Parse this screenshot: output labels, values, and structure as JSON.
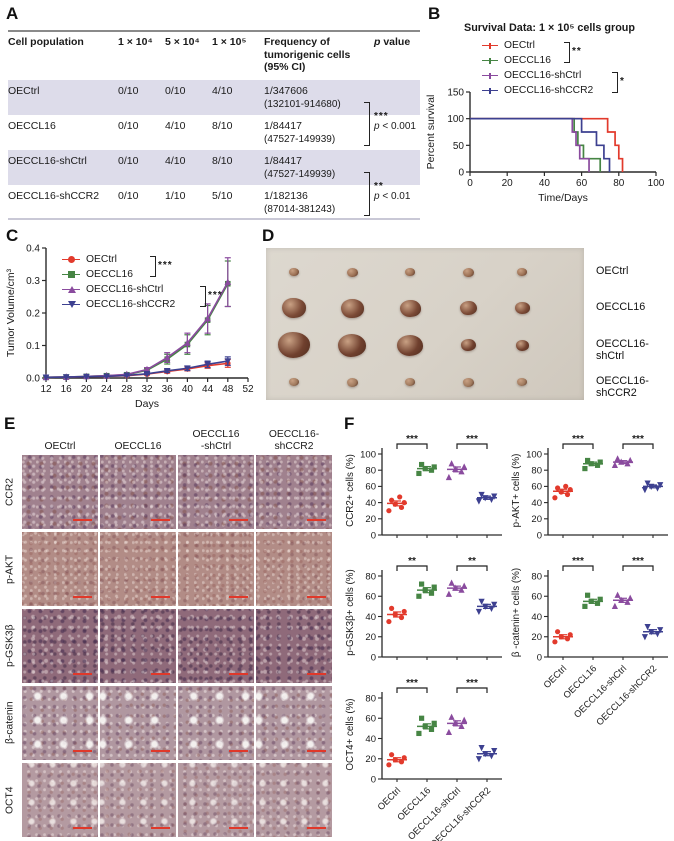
{
  "colors": {
    "red": "#e23a2c",
    "green": "#468544",
    "purple": "#8a4b9e",
    "navy": "#3d4090",
    "axis": "#2a2a2a",
    "stripe": "#dddcea",
    "scalebar": "#e0382a",
    "photo_bg": "#d8d2c8",
    "tumor_rows": [
      "#9b7054",
      "#7c4b37",
      "#70402e",
      "#a07a5e"
    ]
  },
  "panel_labels": {
    "A": "A",
    "B": "B",
    "C": "C",
    "D": "D",
    "E": "E",
    "F": "F"
  },
  "group_names": [
    "OECtrl",
    "OECCL16",
    "OECCL16-shCtrl",
    "OECCL16-shCCR2"
  ],
  "tableA": {
    "header": {
      "pop": "Cell population",
      "d1": "1 × 10⁴",
      "d2": "5 × 10⁴",
      "d3": "1 × 10⁵",
      "freq": "Frequency of tumorigenic cells (95% CI)",
      "p_prefix": "p",
      "p_rest": " value"
    },
    "rows": [
      {
        "name": "OECtrl",
        "d1": "0/10",
        "d2": "0/10",
        "d3": "4/10",
        "freq": "1/347606",
        "ci": "(132101-914680)"
      },
      {
        "name": "OECCL16",
        "d1": "0/10",
        "d2": "4/10",
        "d3": "8/10",
        "freq": "1/84417",
        "ci": "(47527-149939)"
      },
      {
        "name": "OECCL16-shCtrl",
        "d1": "0/10",
        "d2": "4/10",
        "d3": "8/10",
        "freq": "1/84417",
        "ci": "(47527-149939)"
      },
      {
        "name": "OECCL16-shCCR2",
        "d1": "0/10",
        "d2": "1/10",
        "d3": "5/10",
        "freq": "1/182136",
        "ci": "(87014-381243)"
      }
    ],
    "sig": [
      {
        "stars": "***",
        "p_prefix": "p",
        "p_rest": " < 0.001"
      },
      {
        "stars": "**",
        "p_prefix": "p",
        "p_rest": " < 0.01"
      }
    ]
  },
  "panelD": {
    "labels": [
      "OECtrl",
      "OECCL16",
      "OECCL16-shCtrl",
      "OECCL16-shCCR2"
    ],
    "sizes": [
      [
        10,
        11,
        10,
        11,
        10
      ],
      [
        24,
        23,
        21,
        17,
        15
      ],
      [
        32,
        28,
        26,
        15,
        13
      ],
      [
        10,
        11,
        10,
        11,
        10
      ]
    ]
  },
  "panelE": {
    "col_headers": [
      "OECtrl",
      "OECCL16",
      "OECCL16\n-shCtrl",
      "OECCL16-\nshCCR2"
    ],
    "row_labels": [
      "CCR2",
      "p-AKT",
      "p-GSK3β",
      "β-catenin",
      "OCT4"
    ]
  },
  "chart_data": [
    {
      "id": "survival",
      "type": "line",
      "subtype": "step",
      "title": "Survival Data: 1 × 10⁵ cells group",
      "xlabel": "Time/Days",
      "ylabel": "Percent survival",
      "xlim": [
        0,
        100
      ],
      "ylim": [
        0,
        150
      ],
      "xticks": [
        0,
        20,
        40,
        60,
        80,
        100
      ],
      "yticks": [
        0,
        50,
        100,
        150
      ],
      "legend_position": "top",
      "grid": false,
      "sig_stars": [
        "**",
        "*"
      ],
      "series": [
        {
          "name": "OECtrl",
          "color": "red",
          "steps": [
            [
              0,
              100
            ],
            [
              74,
              100
            ],
            [
              74,
              75
            ],
            [
              78,
              75
            ],
            [
              78,
              50
            ],
            [
              80,
              50
            ],
            [
              80,
              25
            ],
            [
              82,
              25
            ],
            [
              82,
              0
            ]
          ]
        },
        {
          "name": "OECCL16",
          "color": "green",
          "steps": [
            [
              0,
              100
            ],
            [
              56,
              100
            ],
            [
              56,
              75
            ],
            [
              58,
              75
            ],
            [
              58,
              50
            ],
            [
              61,
              50
            ],
            [
              61,
              25
            ],
            [
              70,
              25
            ],
            [
              70,
              0
            ]
          ]
        },
        {
          "name": "OECCL16-shCtrl",
          "color": "purple",
          "steps": [
            [
              0,
              100
            ],
            [
              55,
              100
            ],
            [
              55,
              75
            ],
            [
              57,
              75
            ],
            [
              57,
              50
            ],
            [
              59,
              50
            ],
            [
              59,
              25
            ],
            [
              64,
              25
            ],
            [
              64,
              0
            ]
          ]
        },
        {
          "name": "OECCL16-shCCR2",
          "color": "navy",
          "steps": [
            [
              0,
              100
            ],
            [
              60,
              100
            ],
            [
              60,
              75
            ],
            [
              68,
              75
            ],
            [
              68,
              50
            ],
            [
              72,
              50
            ],
            [
              72,
              25
            ],
            [
              75,
              25
            ],
            [
              75,
              0
            ]
          ]
        }
      ]
    },
    {
      "id": "tumor_volume",
      "type": "line",
      "xlabel": "Days",
      "ylabel": "Tumor Volume/cm³",
      "xlim": [
        12,
        52
      ],
      "ylim": [
        0,
        0.4
      ],
      "xticks": [
        12,
        16,
        20,
        24,
        28,
        32,
        36,
        40,
        44,
        48,
        52
      ],
      "yticks": [
        0,
        0.1,
        0.2,
        0.3,
        0.4
      ],
      "legend_position": "upper-left",
      "grid": false,
      "sig_stars": [
        "***",
        "***"
      ],
      "x": [
        12,
        16,
        20,
        24,
        28,
        32,
        36,
        40,
        44,
        48
      ],
      "series": [
        {
          "name": "OECtrl",
          "color": "red",
          "marker": "circle",
          "values": [
            0.002,
            0.003,
            0.004,
            0.005,
            0.007,
            0.012,
            0.02,
            0.028,
            0.038,
            0.045
          ],
          "errors": [
            0,
            0,
            0,
            0,
            0,
            0.003,
            0.005,
            0.006,
            0.008,
            0.012
          ]
        },
        {
          "name": "OECCL16",
          "color": "green",
          "marker": "square",
          "values": [
            0.002,
            0.003,
            0.005,
            0.007,
            0.01,
            0.024,
            0.058,
            0.103,
            0.178,
            0.29
          ],
          "errors": [
            0,
            0,
            0,
            0,
            0.003,
            0.006,
            0.015,
            0.03,
            0.045,
            0.07
          ]
        },
        {
          "name": "OECCL16-shCtrl",
          "color": "purple",
          "marker": "triangle",
          "values": [
            0.002,
            0.003,
            0.005,
            0.007,
            0.011,
            0.026,
            0.063,
            0.108,
            0.183,
            0.295
          ],
          "errors": [
            0,
            0,
            0,
            0,
            0.003,
            0.006,
            0.015,
            0.03,
            0.045,
            0.075
          ]
        },
        {
          "name": "OECCL16-shCCR2",
          "color": "navy",
          "marker": "triangle-down",
          "values": [
            0.002,
            0.003,
            0.004,
            0.005,
            0.008,
            0.013,
            0.022,
            0.03,
            0.042,
            0.052
          ],
          "errors": [
            0,
            0,
            0,
            0,
            0,
            0.003,
            0.005,
            0.007,
            0.01,
            0.013
          ]
        }
      ]
    },
    {
      "id": "ccr2",
      "type": "scatter",
      "ylabel": "CCR2+ cells (%)",
      "ylim": [
        0,
        100
      ],
      "yticks": [
        0,
        20,
        40,
        60,
        80,
        100
      ],
      "show_xlabels": false,
      "sig": [
        {
          "from": 0,
          "to": 1,
          "stars": "***"
        },
        {
          "from": 2,
          "to": 3,
          "stars": "***"
        }
      ],
      "groups": [
        {
          "name": "OECtrl",
          "color": "red",
          "marker": "circle",
          "points": [
            30,
            34,
            38,
            40,
            43,
            47
          ],
          "mean": 39,
          "sem": 3
        },
        {
          "name": "OECCL16",
          "color": "green",
          "marker": "square",
          "points": [
            76,
            80,
            82,
            84,
            87
          ],
          "mean": 82,
          "sem": 2.5
        },
        {
          "name": "OECCL16-shCtrl",
          "color": "purple",
          "marker": "triangle",
          "points": [
            71,
            78,
            81,
            84,
            88
          ],
          "mean": 81,
          "sem": 3
        },
        {
          "name": "OECCL16-shCCR2",
          "color": "navy",
          "marker": "triangle-down",
          "points": [
            42,
            44,
            46,
            48,
            50
          ],
          "mean": 46,
          "sem": 2
        }
      ]
    },
    {
      "id": "p-akt",
      "type": "scatter",
      "ylabel": "p-AKT+ cells (%)",
      "ylim": [
        0,
        100
      ],
      "yticks": [
        0,
        20,
        40,
        60,
        80,
        100
      ],
      "show_xlabels": false,
      "sig": [
        {
          "from": 0,
          "to": 1,
          "stars": "***"
        },
        {
          "from": 2,
          "to": 3,
          "stars": "***"
        }
      ],
      "groups": [
        {
          "name": "OECtrl",
          "color": "red",
          "marker": "circle",
          "points": [
            46,
            50,
            53,
            56,
            58,
            60
          ],
          "mean": 54,
          "sem": 2.5
        },
        {
          "name": "OECCL16",
          "color": "green",
          "marker": "square",
          "points": [
            82,
            86,
            88,
            90,
            92
          ],
          "mean": 88,
          "sem": 2
        },
        {
          "name": "OECCL16-shCtrl",
          "color": "purple",
          "marker": "triangle",
          "points": [
            86,
            88,
            90,
            92,
            94
          ],
          "mean": 90,
          "sem": 1.8
        },
        {
          "name": "OECCL16-shCCR2",
          "color": "navy",
          "marker": "triangle-down",
          "points": [
            56,
            58,
            60,
            62,
            64
          ],
          "mean": 60,
          "sem": 1.8
        }
      ]
    },
    {
      "id": "p-gsk3b",
      "type": "scatter",
      "ylabel": "p-GSK3β+ cells (%)",
      "ylim": [
        0,
        80
      ],
      "yticks": [
        0,
        20,
        40,
        60,
        80
      ],
      "show_xlabels": false,
      "sig": [
        {
          "from": 0,
          "to": 1,
          "stars": "**"
        },
        {
          "from": 2,
          "to": 3,
          "stars": "**"
        }
      ],
      "groups": [
        {
          "name": "OECtrl",
          "color": "red",
          "marker": "circle",
          "points": [
            35,
            39,
            42,
            45,
            48
          ],
          "mean": 42,
          "sem": 2.5
        },
        {
          "name": "OECCL16",
          "color": "green",
          "marker": "square",
          "points": [
            60,
            63,
            66,
            69,
            72
          ],
          "mean": 66,
          "sem": 2.5
        },
        {
          "name": "OECCL16-shCtrl",
          "color": "purple",
          "marker": "triangle",
          "points": [
            62,
            66,
            68,
            70,
            73
          ],
          "mean": 68,
          "sem": 2
        },
        {
          "name": "OECCL16-shCCR2",
          "color": "navy",
          "marker": "triangle-down",
          "points": [
            45,
            48,
            50,
            52,
            55
          ],
          "mean": 50,
          "sem": 2
        }
      ]
    },
    {
      "id": "b-catenin",
      "type": "scatter",
      "ylabel": "β -catenin+ cells (%)",
      "ylim": [
        0,
        80
      ],
      "yticks": [
        0,
        20,
        40,
        60,
        80
      ],
      "show_xlabels": true,
      "sig": [
        {
          "from": 0,
          "to": 1,
          "stars": "***"
        },
        {
          "from": 2,
          "to": 3,
          "stars": "***"
        }
      ],
      "groups": [
        {
          "name": "OECtrl",
          "color": "red",
          "marker": "circle",
          "points": [
            15,
            18,
            20,
            22,
            25
          ],
          "mean": 20,
          "sem": 2
        },
        {
          "name": "OECCL16",
          "color": "green",
          "marker": "square",
          "points": [
            50,
            53,
            55,
            57,
            61
          ],
          "mean": 55,
          "sem": 2
        },
        {
          "name": "OECCL16-shCtrl",
          "color": "purple",
          "marker": "triangle",
          "points": [
            50,
            54,
            56,
            58,
            61
          ],
          "mean": 56,
          "sem": 2
        },
        {
          "name": "OECCL16-shCCR2",
          "color": "navy",
          "marker": "triangle-down",
          "points": [
            20,
            23,
            25,
            27,
            30
          ],
          "mean": 25,
          "sem": 2
        }
      ]
    },
    {
      "id": "oct4",
      "type": "scatter",
      "ylabel": "OCT4+ cells (%)",
      "ylim": [
        0,
        80
      ],
      "yticks": [
        0,
        20,
        40,
        60,
        80
      ],
      "show_xlabels": true,
      "sig": [
        {
          "from": 0,
          "to": 1,
          "stars": "***"
        },
        {
          "from": 2,
          "to": 3,
          "stars": "***"
        }
      ],
      "groups": [
        {
          "name": "OECtrl",
          "color": "red",
          "marker": "circle",
          "points": [
            14,
            17,
            19,
            21,
            24
          ],
          "mean": 19,
          "sem": 2
        },
        {
          "name": "OECCL16",
          "color": "green",
          "marker": "square",
          "points": [
            45,
            49,
            52,
            55,
            60
          ],
          "mean": 52,
          "sem": 2.5
        },
        {
          "name": "OECCL16-shCtrl",
          "color": "purple",
          "marker": "triangle",
          "points": [
            46,
            52,
            55,
            58,
            61
          ],
          "mean": 55,
          "sem": 2.5
        },
        {
          "name": "OECCL16-shCCR2",
          "color": "navy",
          "marker": "triangle-down",
          "points": [
            20,
            23,
            25,
            28,
            31
          ],
          "mean": 25,
          "sem": 2
        }
      ]
    }
  ]
}
